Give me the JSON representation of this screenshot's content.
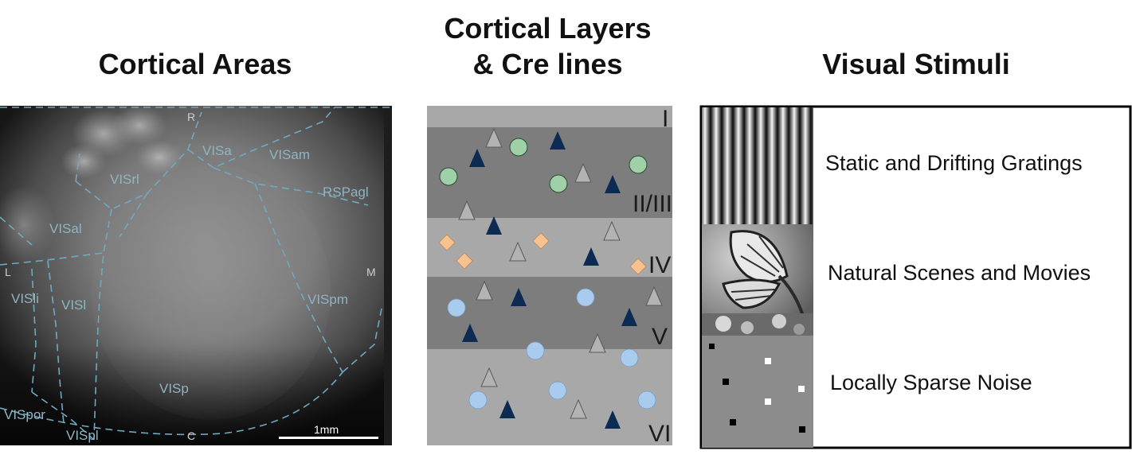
{
  "titles": {
    "areas": "Cortical Areas",
    "layers_line1": "Cortical Layers",
    "layers_line2": "& Cre lines",
    "stimuli": "Visual Stimuli"
  },
  "map": {
    "areas": [
      "VISrl",
      "VISa",
      "VISam",
      "RSPagl",
      "VISal",
      "VISli",
      "VISl",
      "VISpm",
      "VISp",
      "VISpor",
      "VISpl"
    ],
    "directions": {
      "rostral": "R",
      "caudal": "C",
      "lateral": "L",
      "medial": "M"
    },
    "scalebar_label": "1mm",
    "boundary_color": "#6fa9c0"
  },
  "layers": {
    "names": [
      "I",
      "II/III",
      "IV",
      "V",
      "VI"
    ],
    "colors": {
      "light": "#a8a8a8",
      "dark": "#7d7d7d"
    },
    "markers": {
      "green_circle": "#9fd0a8",
      "orange_diamond": "#f8c190",
      "gray_triangle": "#b3b3b3",
      "navy_triangle": "#0c2a52",
      "blue_circle": "#a9cbee"
    }
  },
  "stimuli": {
    "items": [
      {
        "label": "Static and Drifting Gratings"
      },
      {
        "label": "Natural Scenes and Movies"
      },
      {
        "label": "Locally Sparse Noise"
      }
    ]
  }
}
